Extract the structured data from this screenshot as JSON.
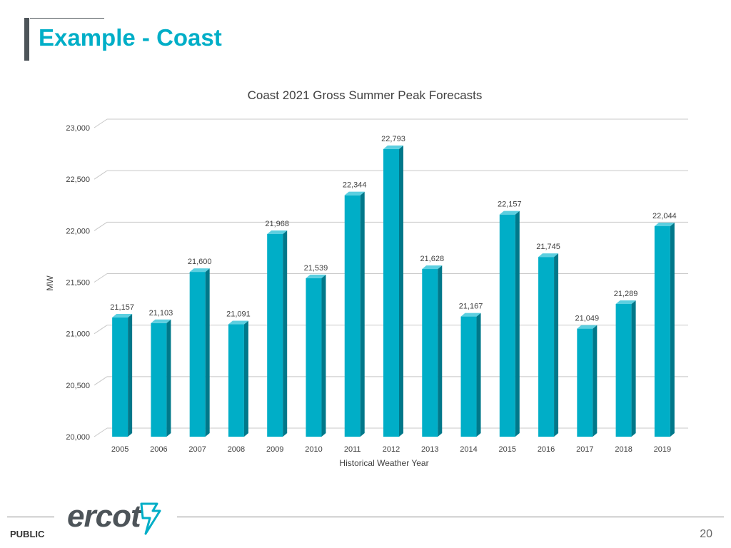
{
  "slide": {
    "title": "Example - Coast",
    "footer_label": "PUBLIC",
    "page_number": "20",
    "logo_text": "ercot",
    "accent_color": "#00aec7"
  },
  "chart_data": {
    "type": "bar",
    "title": "Coast 2021 Gross Summer Peak Forecasts",
    "xlabel": "Historical Weather Year",
    "ylabel": "MW",
    "categories": [
      "2005",
      "2006",
      "2007",
      "2008",
      "2009",
      "2010",
      "2011",
      "2012",
      "2013",
      "2014",
      "2015",
      "2016",
      "2017",
      "2018",
      "2019"
    ],
    "values": [
      21157,
      21103,
      21600,
      21091,
      21968,
      21539,
      22344,
      22793,
      21628,
      21167,
      22157,
      21745,
      21049,
      21289,
      22044
    ],
    "value_labels": [
      "21,157",
      "21,103",
      "21,600",
      "21,091",
      "21,968",
      "21,539",
      "22,344",
      "22,793",
      "21,628",
      "21,167",
      "22,157",
      "21,745",
      "21,049",
      "21,289",
      "22,044"
    ],
    "ylim": [
      20000,
      23000
    ],
    "yticks": [
      20000,
      20500,
      21000,
      21500,
      22000,
      22500,
      23000
    ],
    "ytick_labels": [
      "20,000",
      "20,500",
      "21,000",
      "21,500",
      "22,000",
      "22,500",
      "23,000"
    ],
    "grid": true,
    "legend": "none",
    "bar_color": "#00aec7",
    "bar_side_color": "#00788a",
    "bar_top_color": "#5ccfe0"
  }
}
